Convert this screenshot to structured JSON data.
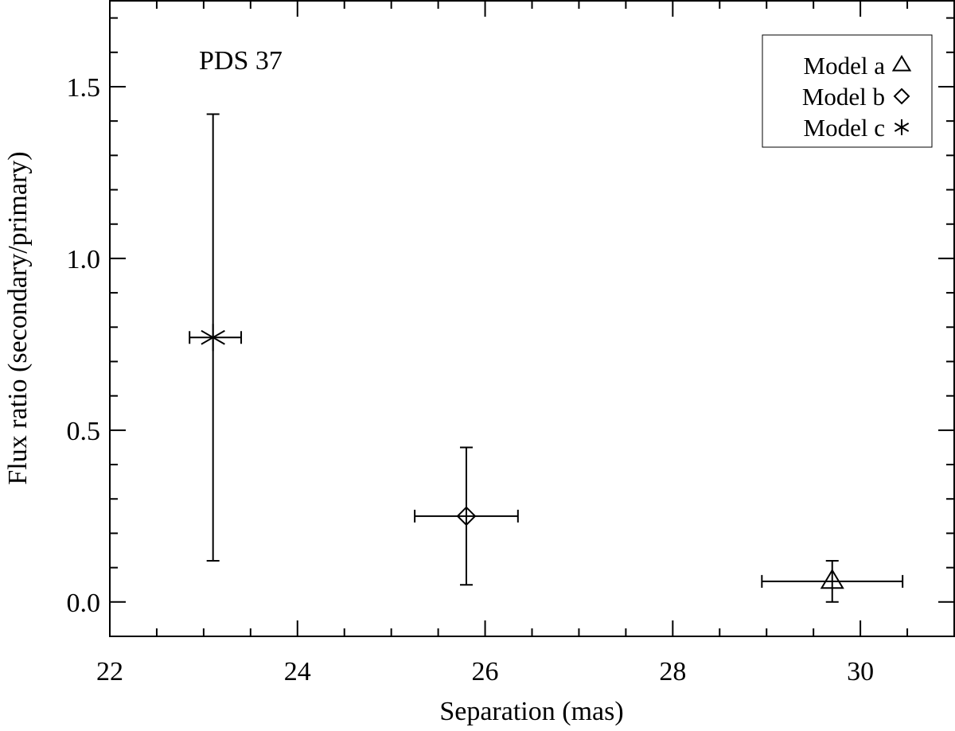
{
  "chart_data": {
    "type": "scatter",
    "annotation": "PDS 37",
    "xlabel": "Separation (mas)",
    "ylabel": "Flux ratio (secondary/primary)",
    "xlim": [
      22,
      31
    ],
    "ylim": [
      -0.1,
      1.75
    ],
    "x_ticks": [
      "22",
      "24",
      "26",
      "28",
      "30"
    ],
    "y_ticks": [
      "0.0",
      "0.5",
      "1.0",
      "1.5"
    ],
    "x_minor_step": 0.5,
    "y_minor_step": 0.1,
    "legend_position": "top-right",
    "series": [
      {
        "name": "Model a",
        "marker": "triangle",
        "x": 29.7,
        "y": 0.06,
        "xerr": [
          28.95,
          30.45
        ],
        "yerr": [
          0.0,
          0.12
        ]
      },
      {
        "name": "Model b",
        "marker": "diamond",
        "x": 25.8,
        "y": 0.25,
        "xerr": [
          25.25,
          26.35
        ],
        "yerr": [
          0.05,
          0.45
        ]
      },
      {
        "name": "Model c",
        "marker": "asterisk",
        "x": 23.1,
        "y": 0.77,
        "xerr": [
          22.85,
          23.4
        ],
        "yerr": [
          0.12,
          1.42
        ]
      }
    ]
  }
}
